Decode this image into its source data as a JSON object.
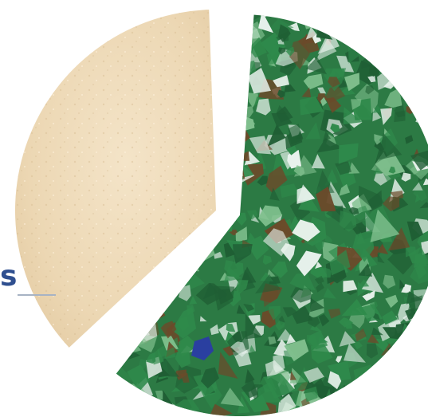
{
  "figure": {
    "label": "s",
    "segments": [
      {
        "name": "sand-segment",
        "material": "sand"
      },
      {
        "name": "glass-segment",
        "material": "crushed glass"
      }
    ]
  },
  "colors": {
    "background": "#ffffff",
    "label_text": "#2f4f8f",
    "leader_line": "#a7b3c4",
    "sand_light": "#f1dfc0",
    "sand_mid": "#e8d2ac",
    "sand_dark": "#d9bf92",
    "glass_dark": "#1f5e34",
    "glass_mid": "#2f8a4b",
    "glass_light": "#7fbf8d",
    "glass_white": "#e8f2ec",
    "glass_brown": "#6b4a2a",
    "glass_blue": "#2a3fa0"
  }
}
